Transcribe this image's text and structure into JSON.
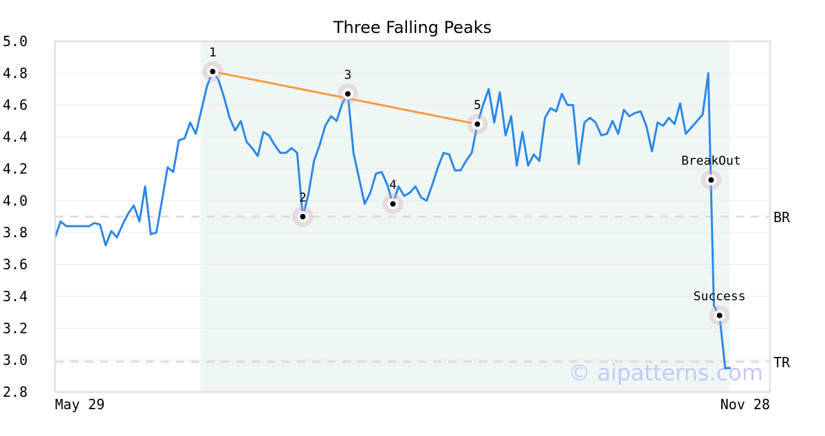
{
  "chart_data": {
    "type": "line",
    "title": "Three Falling Peaks",
    "xlabel": "",
    "ylabel": "",
    "x_tick_labels": [
      "May 29",
      "Nov 28"
    ],
    "ylim": [
      2.8,
      5.0
    ],
    "y_ticks": [
      "5.0",
      "4.8",
      "4.6",
      "4.4",
      "4.2",
      "4.0",
      "3.8",
      "3.6",
      "3.4",
      "3.2",
      "3.0",
      "2.8"
    ],
    "grid": true,
    "line_color": "#2b87e8",
    "values": [
      3.77,
      3.87,
      3.84,
      3.84,
      3.84,
      3.84,
      3.84,
      3.86,
      3.85,
      3.72,
      3.81,
      3.77,
      3.85,
      3.92,
      3.97,
      3.87,
      4.09,
      3.79,
      3.8,
      4.0,
      4.21,
      4.18,
      4.38,
      4.39,
      4.49,
      4.42,
      4.57,
      4.72,
      4.81,
      4.76,
      4.65,
      4.52,
      4.44,
      4.5,
      4.37,
      4.33,
      4.28,
      4.43,
      4.41,
      4.35,
      4.3,
      4.3,
      4.33,
      4.3,
      3.9,
      4.04,
      4.25,
      4.35,
      4.47,
      4.53,
      4.5,
      4.61,
      4.67,
      4.3,
      4.14,
      3.98,
      4.05,
      4.17,
      4.18,
      4.1,
      3.98,
      4.09,
      4.03,
      4.05,
      4.09,
      4.02,
      4.0,
      4.1,
      4.21,
      4.3,
      4.29,
      4.19,
      4.19,
      4.25,
      4.3,
      4.48,
      4.6,
      4.7,
      4.49,
      4.68,
      4.41,
      4.53,
      4.22,
      4.43,
      4.22,
      4.29,
      4.25,
      4.52,
      4.58,
      4.56,
      4.67,
      4.6,
      4.6,
      4.23,
      4.49,
      4.52,
      4.49,
      4.41,
      4.42,
      4.5,
      4.42,
      4.57,
      4.53,
      4.55,
      4.56,
      4.47,
      4.31,
      4.49,
      4.47,
      4.52,
      4.48,
      4.61,
      4.42,
      4.46,
      4.5,
      4.54,
      4.8,
      3.34,
      3.28,
      2.95,
      2.95
    ],
    "highlight_range_index": [
      25.8,
      119.8
    ],
    "highlight_color": "#eef7f3",
    "markers": [
      {
        "label": "1",
        "index": 28,
        "value": 4.81
      },
      {
        "label": "2",
        "index": 44,
        "value": 3.9
      },
      {
        "label": "3",
        "index": 52,
        "value": 4.67
      },
      {
        "label": "4",
        "index": 60,
        "value": 3.98
      },
      {
        "label": "5",
        "index": 75,
        "value": 4.48
      },
      {
        "label": "BreakOut",
        "index": 116.5,
        "value": 4.13
      },
      {
        "label": "Success",
        "index": 118,
        "value": 3.28
      }
    ],
    "trendline": {
      "from_marker": "1",
      "to_marker": "5",
      "color": "#f89b3f"
    },
    "levels": [
      {
        "label": "BR",
        "value": 3.9
      },
      {
        "label": "TR",
        "value": 2.99
      }
    ],
    "watermark": "© aipatterns.com"
  }
}
